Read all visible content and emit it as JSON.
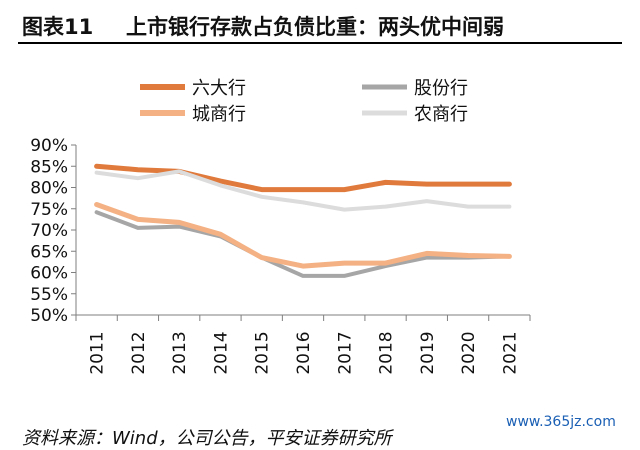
{
  "figure": {
    "prefix": "图表11",
    "title": "上市银行存款占负债比重：两头优中间弱"
  },
  "source": "资料来源：Wind，公司公告，平安证券研究所",
  "watermark": "www.365jz.com",
  "chart_data": {
    "type": "line",
    "x": [
      "2011",
      "2012",
      "2013",
      "2014",
      "2015",
      "2016",
      "2017",
      "2018",
      "2019",
      "2020",
      "2021"
    ],
    "ylim": [
      0.5,
      0.9
    ],
    "yticks": [
      "50%",
      "55%",
      "60%",
      "65%",
      "70%",
      "75%",
      "80%",
      "85%",
      "90%"
    ],
    "ytick_values": [
      0.5,
      0.55,
      0.6,
      0.65,
      0.7,
      0.75,
      0.8,
      0.85,
      0.9
    ],
    "grid": false,
    "legend_position": "top",
    "series": [
      {
        "name": "六大行",
        "color": "#E07A3C",
        "width": 5,
        "values": [
          0.85,
          0.842,
          0.838,
          0.815,
          0.795,
          0.795,
          0.795,
          0.812,
          0.808,
          0.808,
          0.808
        ]
      },
      {
        "name": "股份行",
        "color": "#A6A6A6",
        "width": 4,
        "values": [
          0.742,
          0.705,
          0.708,
          0.685,
          0.635,
          0.592,
          0.592,
          0.615,
          0.635,
          0.635,
          0.638
        ]
      },
      {
        "name": "城商行",
        "color": "#F4B183",
        "width": 5,
        "values": [
          0.76,
          0.725,
          0.718,
          0.69,
          0.635,
          0.615,
          0.622,
          0.622,
          0.645,
          0.64,
          0.638
        ]
      },
      {
        "name": "农商行",
        "color": "#DCDCDC",
        "width": 4,
        "values": [
          0.835,
          0.822,
          0.838,
          0.805,
          0.778,
          0.765,
          0.748,
          0.755,
          0.768,
          0.755,
          0.755
        ]
      }
    ]
  }
}
